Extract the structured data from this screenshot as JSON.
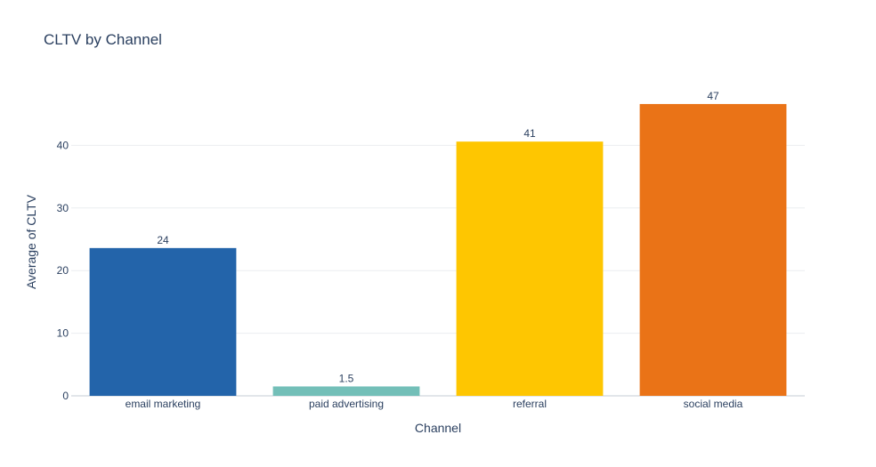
{
  "chart_data": {
    "type": "bar",
    "title": "CLTV by Channel",
    "xlabel": "Channel",
    "ylabel": "Average of CLTV",
    "categories": [
      "email marketing",
      "paid advertising",
      "referral",
      "social media"
    ],
    "values": [
      23.6,
      1.5,
      40.6,
      46.6
    ],
    "value_labels": [
      "24",
      "1.5",
      "41",
      "47"
    ],
    "bar_colors": [
      "#2364aa",
      "#73bfb8",
      "#fec601",
      "#ea7317"
    ],
    "ylim": [
      0,
      50
    ],
    "yticks": [
      0,
      10,
      20,
      30,
      40
    ],
    "grid": true,
    "legend": "none"
  }
}
